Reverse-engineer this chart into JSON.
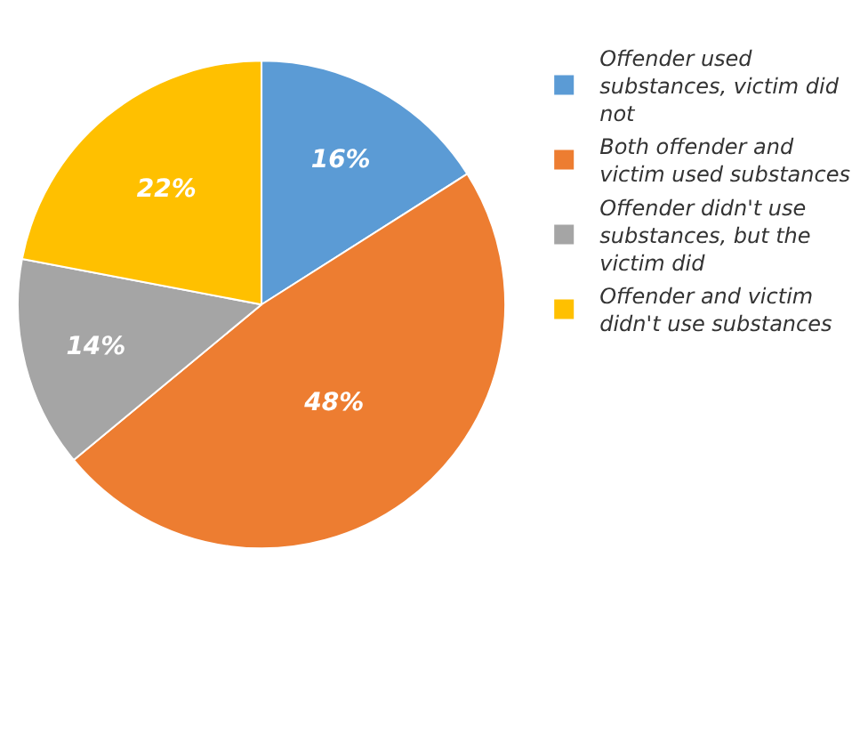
{
  "chart_data": {
    "type": "pie",
    "categories": [
      "Offender used substances, victim did not",
      "Both offender and victim used substances",
      "Offender didn't use substances, but the victim did",
      "Offender and victim didn't use substances"
    ],
    "values": [
      16,
      48,
      14,
      22
    ],
    "colors": [
      "#5b9bd5",
      "#ed7d31",
      "#a5a5a5",
      "#ffc000"
    ],
    "value_labels": [
      "16%",
      "48%",
      "14%",
      "22%"
    ],
    "legend": "right"
  }
}
